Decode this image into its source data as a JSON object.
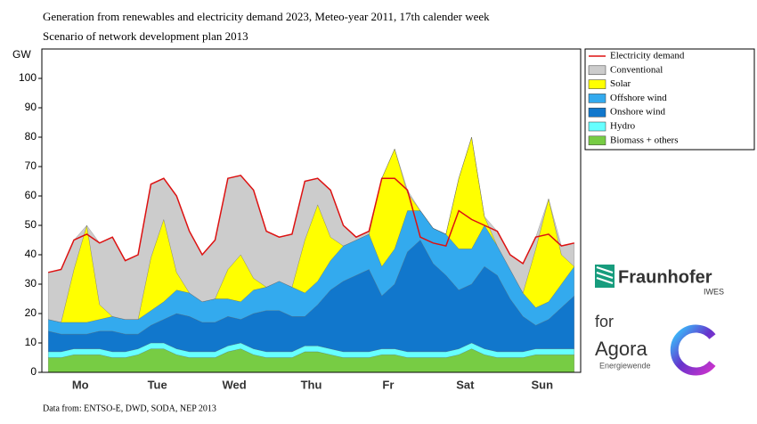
{
  "chart_data": {
    "type": "stacked_area",
    "title": "Generation from renewables and electricity demand 2023, Meteo-year 2011, 17th calender week",
    "subtitle": "Scenario of network development plan 2013",
    "y_label": "GW",
    "source": "Data from: ENTSO-E, DWD, SODA, NEP 2013",
    "categories": [
      null,
      null,
      null,
      "Mo",
      null,
      null,
      null,
      null,
      null,
      "Tue",
      null,
      null,
      null,
      null,
      null,
      "Wed",
      null,
      null,
      null,
      null,
      null,
      "Thu",
      null,
      null,
      null,
      null,
      null,
      "Fr",
      null,
      null,
      null,
      null,
      null,
      "Sat",
      null,
      null,
      null,
      null,
      null,
      "Sun",
      null,
      null
    ],
    "ylim": [
      0,
      110
    ],
    "yticks": [
      0,
      10,
      20,
      30,
      40,
      50,
      60,
      70,
      80,
      90,
      100
    ],
    "legend": "right",
    "series": [
      {
        "name": "Electricity demand",
        "type": "line",
        "color": "#dd1111",
        "values": [
          34,
          35,
          45,
          47,
          44,
          46,
          38,
          40,
          64,
          66,
          60,
          48,
          40,
          45,
          66,
          67,
          62,
          48,
          46,
          47,
          65,
          66,
          62,
          50,
          46,
          48,
          66,
          66,
          62,
          46,
          44,
          43,
          55,
          52,
          50,
          48,
          40,
          37,
          46,
          47,
          43,
          44
        ]
      },
      {
        "name": "Conventional",
        "color": "#cccccc",
        "values": [
          16,
          18,
          10,
          0,
          21,
          27,
          20,
          22,
          25,
          14,
          26,
          21,
          16,
          20,
          31,
          27,
          30,
          19,
          15,
          18,
          20,
          9,
          16,
          7,
          1,
          1,
          0,
          0,
          1,
          0,
          0,
          0,
          0,
          0,
          0,
          5,
          5,
          10,
          4,
          0,
          3,
          8
        ]
      },
      {
        "name": "Solar",
        "color": "#ffff00",
        "values": [
          0,
          0,
          18,
          33,
          5,
          0,
          0,
          0,
          18,
          28,
          6,
          0,
          0,
          0,
          10,
          16,
          4,
          0,
          0,
          0,
          18,
          26,
          8,
          0,
          0,
          0,
          30,
          34,
          6,
          0,
          0,
          0,
          24,
          38,
          3,
          0,
          0,
          0,
          20,
          35,
          10,
          0
        ]
      },
      {
        "name": "Offshore wind",
        "color": "#33aaee",
        "values": [
          4,
          4,
          4,
          4,
          4,
          5,
          5,
          5,
          5,
          6,
          8,
          8,
          7,
          8,
          6,
          6,
          8,
          8,
          10,
          10,
          8,
          8,
          10,
          12,
          12,
          12,
          10,
          12,
          14,
          10,
          12,
          14,
          14,
          12,
          14,
          10,
          10,
          8,
          6,
          6,
          8,
          10
        ]
      },
      {
        "name": "Onshore wind",
        "color": "#1177cc",
        "values": [
          7,
          6,
          5,
          5,
          6,
          7,
          6,
          5,
          6,
          8,
          12,
          12,
          10,
          10,
          10,
          8,
          12,
          14,
          14,
          12,
          10,
          14,
          20,
          24,
          26,
          28,
          18,
          22,
          34,
          38,
          30,
          26,
          20,
          20,
          28,
          26,
          18,
          12,
          8,
          10,
          14,
          18
        ]
      },
      {
        "name": "Hydro",
        "color": "#66ffff",
        "values": [
          2,
          2,
          2,
          2,
          2,
          2,
          2,
          2,
          2,
          2,
          2,
          2,
          2,
          2,
          2,
          2,
          2,
          2,
          2,
          2,
          2,
          2,
          2,
          2,
          2,
          2,
          2,
          2,
          2,
          2,
          2,
          2,
          2,
          2,
          2,
          2,
          2,
          2,
          2,
          2,
          2,
          2
        ]
      },
      {
        "name": "Biomass + others",
        "color": "#77cc44",
        "values": [
          5,
          5,
          6,
          6,
          6,
          5,
          5,
          6,
          8,
          8,
          6,
          5,
          5,
          5,
          7,
          8,
          6,
          5,
          5,
          5,
          7,
          7,
          6,
          5,
          5,
          5,
          6,
          6,
          5,
          5,
          5,
          5,
          6,
          8,
          6,
          5,
          5,
          5,
          6,
          6,
          6,
          6
        ]
      }
    ]
  },
  "logos": {
    "fraunhofer": "Fraunhofer",
    "institute": "IWES",
    "for": "for",
    "agora": "Agora",
    "agora_sub": "Energiewende"
  }
}
